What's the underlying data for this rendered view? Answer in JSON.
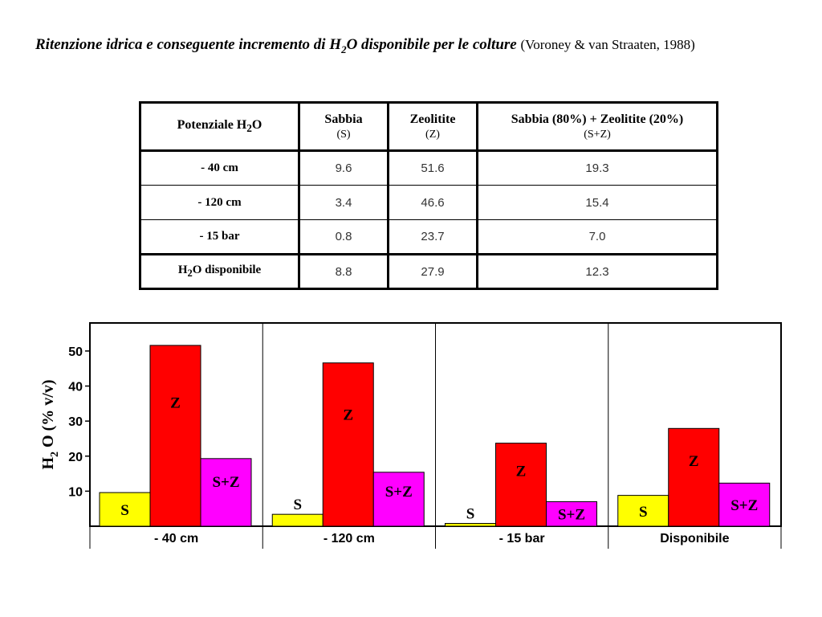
{
  "title": {
    "main_pre": "Ritenzione idrica e conseguente incremento di H",
    "main_sub": "2",
    "main_post": "O disponibile per le colture",
    "citation": "(Voroney & van Straaten, 1988)"
  },
  "table": {
    "headers": [
      {
        "pre": "Potenziale H",
        "sub": "2",
        "post": "O",
        "note": ""
      },
      {
        "pre": "Sabbia",
        "sub": "",
        "post": "",
        "note": "(S)"
      },
      {
        "pre": "Zeolitite",
        "sub": "",
        "post": "",
        "note": "(Z)"
      },
      {
        "pre": "Sabbia (80%) + Zeolitite (20%)",
        "sub": "",
        "post": "",
        "note": "(S+Z)"
      }
    ],
    "rows": [
      {
        "pre": "- 40 cm",
        "sub": "",
        "post": "",
        "values": [
          "9.6",
          "51.6",
          "19.3"
        ]
      },
      {
        "pre": "- 120 cm",
        "sub": "",
        "post": "",
        "values": [
          "3.4",
          "46.6",
          "15.4"
        ]
      },
      {
        "pre": "- 15 bar",
        "sub": "",
        "post": "",
        "values": [
          "0.8",
          "23.7",
          "7.0"
        ]
      },
      {
        "pre": "H",
        "sub": "2",
        "post": "O disponibile",
        "values": [
          "8.8",
          "27.9",
          "12.3"
        ]
      }
    ]
  },
  "chart_data": {
    "type": "bar",
    "categories": [
      "- 40 cm",
      "- 120 cm",
      "- 15 bar",
      "Disponibile"
    ],
    "series": [
      {
        "name": "S",
        "color": "#ffff00",
        "values": [
          9.6,
          3.4,
          0.8,
          8.8
        ]
      },
      {
        "name": "Z",
        "color": "#ff0000",
        "values": [
          51.6,
          46.6,
          23.7,
          27.9
        ]
      },
      {
        "name": "S+Z",
        "color": "#ff00ff",
        "values": [
          19.3,
          15.4,
          7.0,
          12.3
        ]
      }
    ],
    "ylabel_pre": "H",
    "ylabel_sub": "2",
    "ylabel_post": "O (% v/v)",
    "ylim": [
      0,
      58
    ],
    "yticks": [
      10,
      20,
      30,
      40,
      50
    ],
    "grid": false,
    "legend": "none"
  }
}
